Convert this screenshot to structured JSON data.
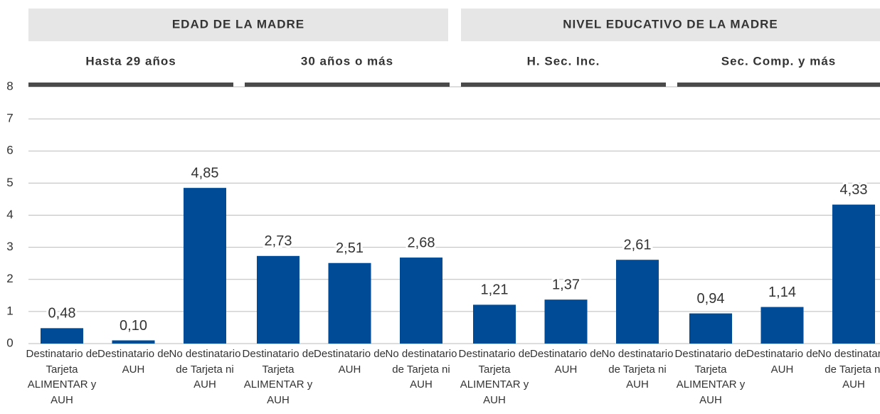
{
  "chart_data": {
    "type": "bar",
    "color": "#004b96",
    "ylim": [
      0,
      8
    ],
    "yticks": [
      0,
      1,
      2,
      3,
      4,
      5,
      6,
      7,
      8
    ],
    "grid": true,
    "groups": [
      {
        "name": "EDAD DE LA MADRE",
        "subgroups": [
          {
            "name": "Hasta 29 años",
            "categories": [
              "Destinatario de Tarjeta ALIMENTAR y AUH",
              "Destinatario de AUH",
              "No destinatario de Tarjeta ni AUH"
            ],
            "values": [
              0.48,
              0.1,
              4.85
            ],
            "value_labels": [
              "0,48",
              "0,10",
              "4,85"
            ]
          },
          {
            "name": "30 años o más",
            "categories": [
              "Destinatario de Tarjeta ALIMENTAR y AUH",
              "Destinatario de AUH",
              "No destinatario de Tarjeta ni AUH"
            ],
            "values": [
              2.73,
              2.51,
              2.68
            ],
            "value_labels": [
              "2,73",
              "2,51",
              "2,68"
            ]
          }
        ]
      },
      {
        "name": "NIVEL EDUCATIVO DE LA MADRE",
        "subgroups": [
          {
            "name": "H. Sec. Inc.",
            "categories": [
              "Destinatario de Tarjeta ALIMENTAR y AUH",
              "Destinatario de AUH",
              "No destinatario de Tarjeta ni AUH"
            ],
            "values": [
              1.21,
              1.37,
              2.61
            ],
            "value_labels": [
              "1,21",
              "1,37",
              "2,61"
            ]
          },
          {
            "name": "Sec. Comp. y más",
            "categories": [
              "Destinatario de Tarjeta ALIMENTAR y AUH",
              "Destinatario de AUH",
              "No destinatario de Tarjeta ni AUH"
            ],
            "values": [
              0.94,
              1.14,
              4.33
            ],
            "value_labels": [
              "0,94",
              "1,14",
              "4,33"
            ]
          }
        ]
      }
    ]
  }
}
